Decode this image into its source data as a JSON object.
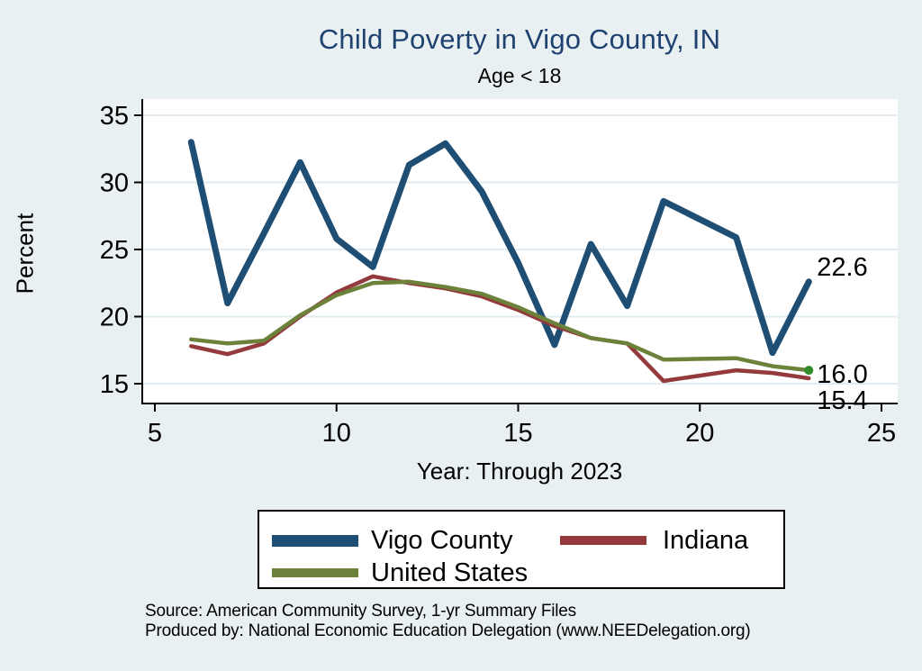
{
  "title": "Child Poverty in Vigo County, IN",
  "subtitle": "Age < 18",
  "source": {
    "line1": "Source: American Community Survey, 1-yr Summary Files",
    "line2": "Produced by: National Economic Education Delegation (www.NEEDelegation.org)"
  },
  "colors": {
    "background": "#e9f0f2",
    "plot_background": "#ffffff",
    "title_color": "#1f4271",
    "gridline": "#e1ecf2",
    "axis": "#000000",
    "vigo_blue": "#1f4e74",
    "indiana_red": "#943a3c",
    "us_green": "#6c8139",
    "us_end_dot": "#2f8b27"
  },
  "chart_data": {
    "type": "line",
    "title": "Child Poverty in Vigo County, IN",
    "subtitle": "Age < 18",
    "xlabel": "Year: Through 2023",
    "ylabel": "Percent",
    "xlim": [
      5,
      25
    ],
    "ylim": [
      13.5,
      36
    ],
    "xticks": [
      5,
      10,
      15,
      20,
      25
    ],
    "yticks": [
      15,
      20,
      25,
      30,
      35
    ],
    "grid": true,
    "legend_position": "bottom",
    "x": [
      6,
      7,
      8,
      9,
      10,
      11,
      12,
      13,
      14,
      15,
      16,
      17,
      18,
      19,
      20,
      21,
      22,
      23
    ],
    "series": [
      {
        "name": "Vigo County",
        "color": "#1f4e74",
        "line_width": 7,
        "end_label": "22.6",
        "values": [
          33.0,
          21.0,
          26.2,
          31.5,
          25.8,
          23.7,
          31.3,
          32.9,
          29.3,
          24.0,
          17.9,
          25.4,
          20.8,
          28.6,
          null,
          25.9,
          17.3,
          22.6
        ]
      },
      {
        "name": "Indiana",
        "color": "#943a3c",
        "line_width": 4.5,
        "end_label": "15.4",
        "values": [
          17.8,
          17.2,
          18.0,
          20.0,
          21.8,
          23.0,
          22.5,
          22.1,
          21.5,
          20.5,
          19.3,
          18.4,
          18.0,
          15.2,
          null,
          16.0,
          15.8,
          15.4
        ]
      },
      {
        "name": "United States",
        "color": "#6c8139",
        "line_width": 4.5,
        "end_label": "16.0",
        "end_marker_color": "#2f8b27",
        "values": [
          18.3,
          18.0,
          18.2,
          20.1,
          21.6,
          22.5,
          22.6,
          22.2,
          21.7,
          20.7,
          19.5,
          18.4,
          18.0,
          16.8,
          null,
          16.9,
          16.3,
          16.0
        ]
      }
    ]
  }
}
